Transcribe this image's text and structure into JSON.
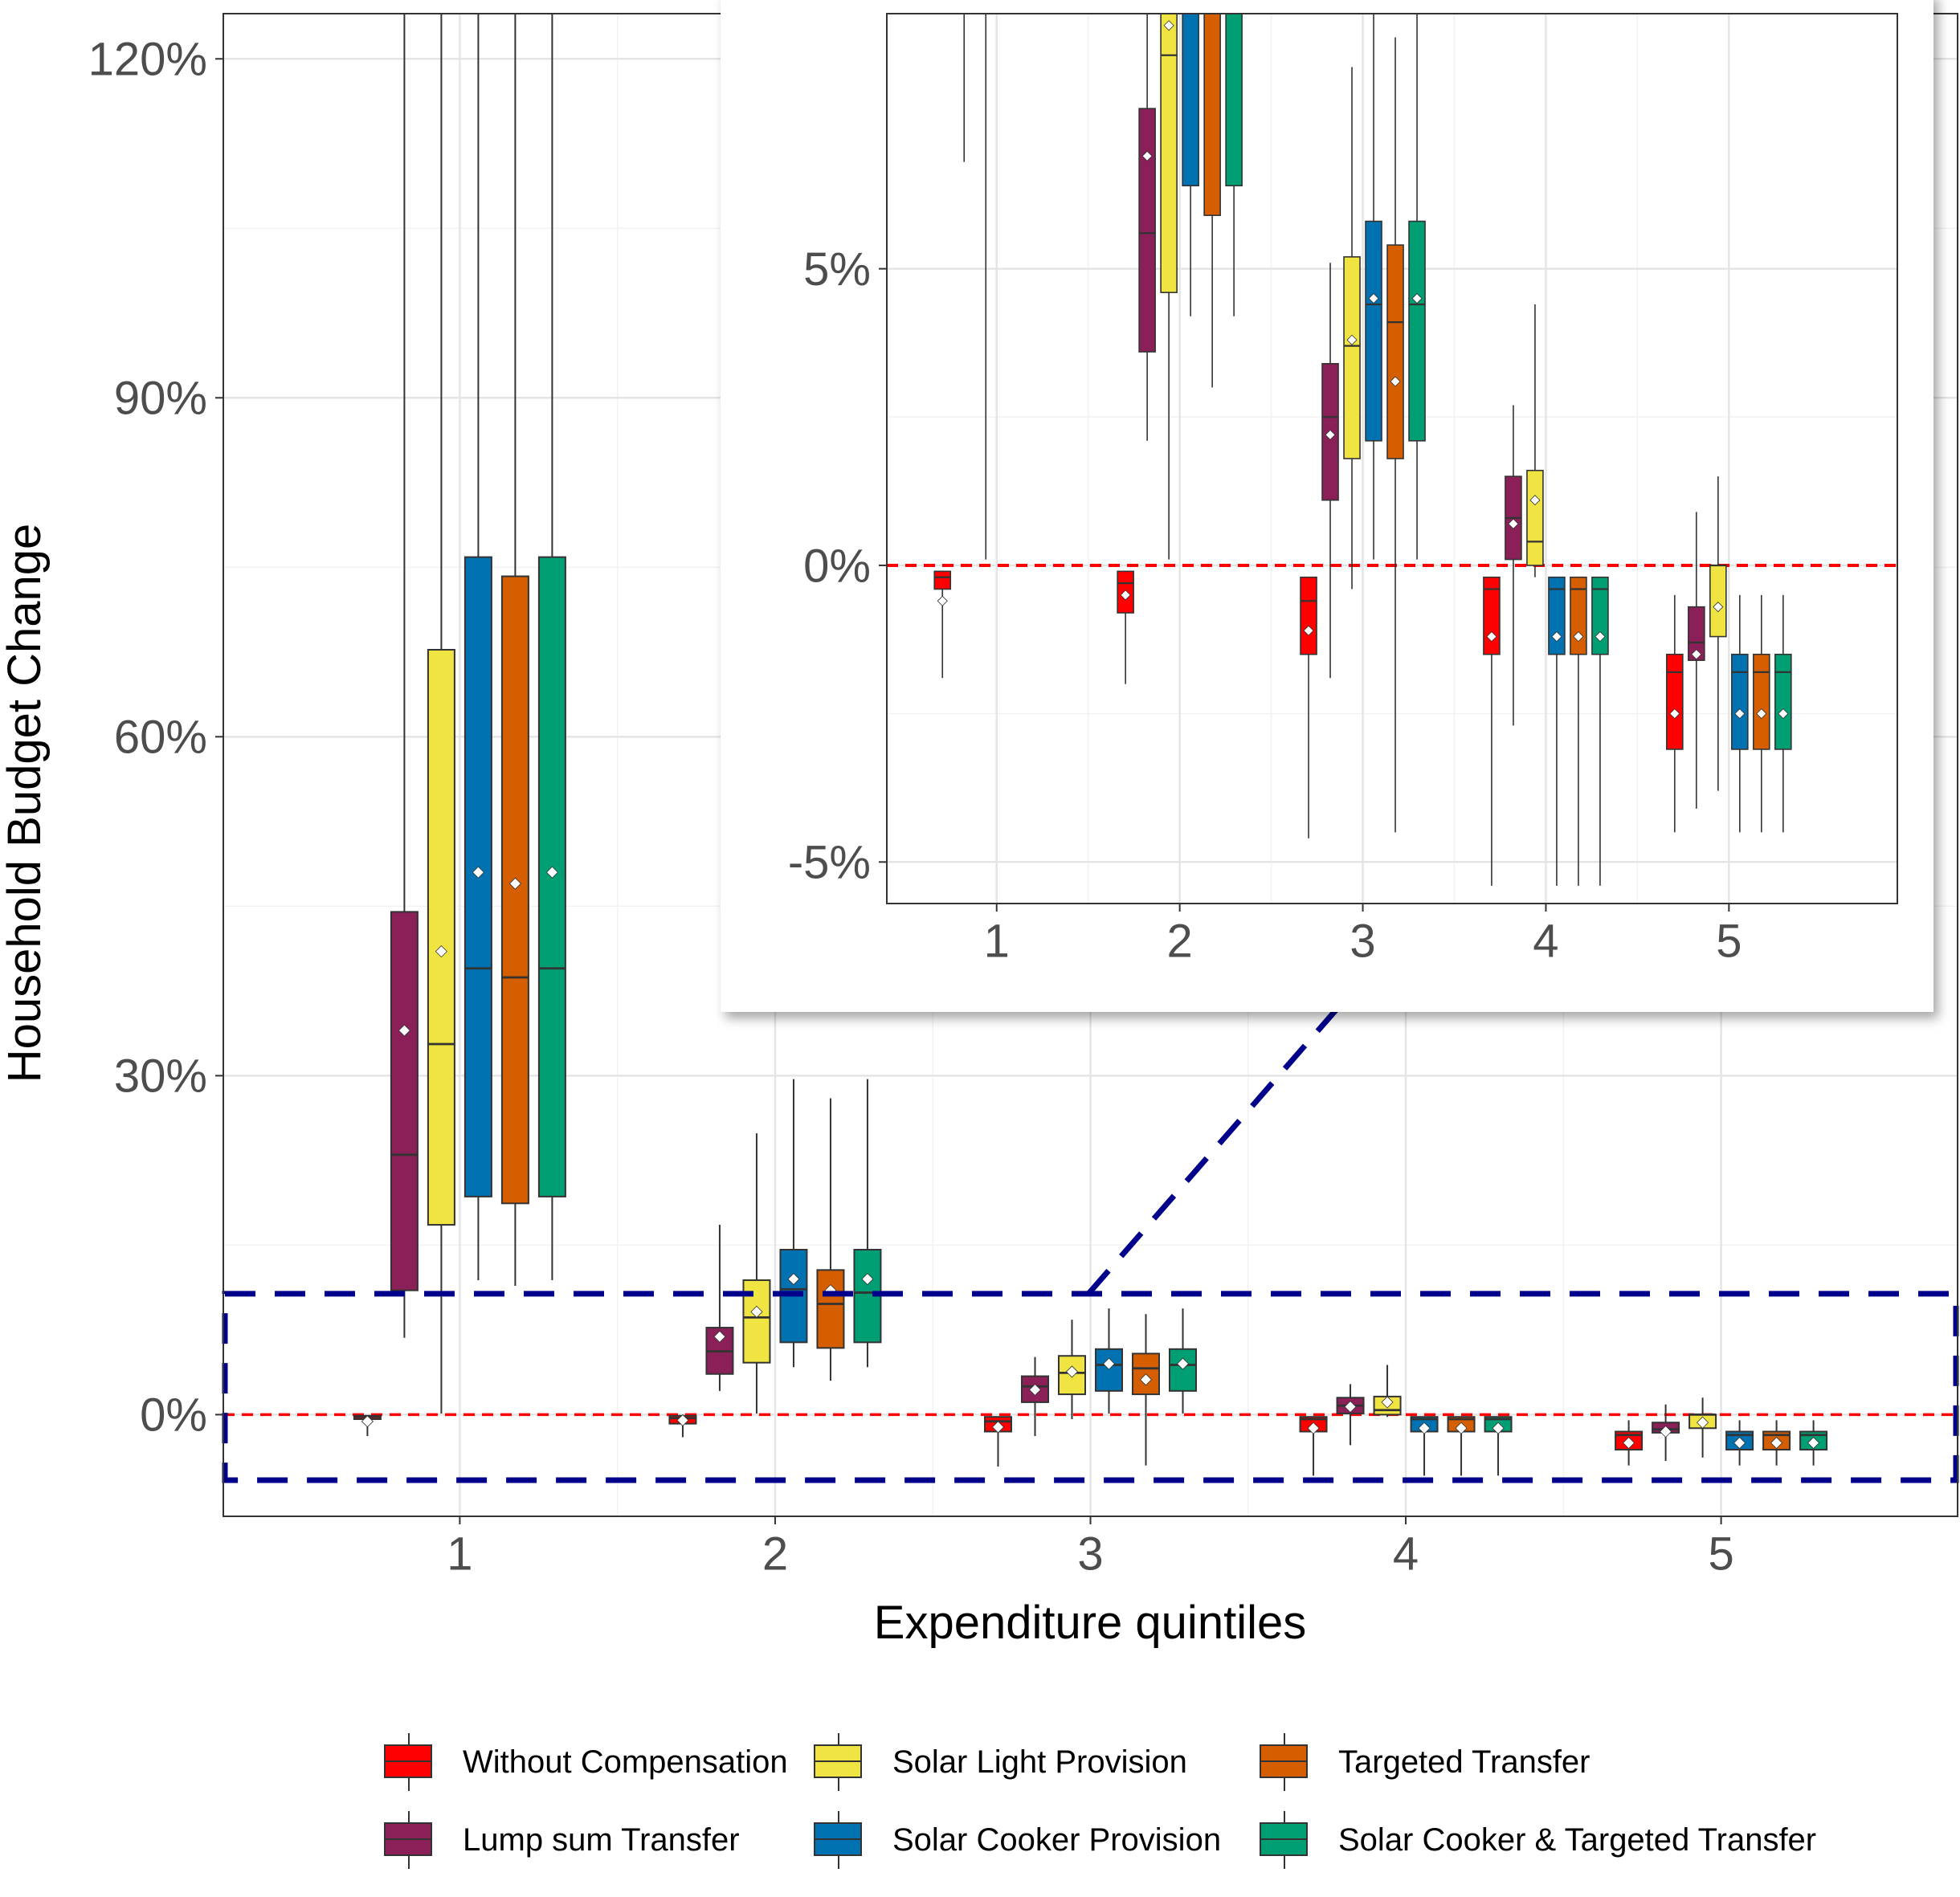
{
  "chart_data": [
    {
      "type": "boxplot",
      "xlabel": "Expenditure quintiles",
      "ylabel": "Household Budget Change",
      "categories": [
        "1",
        "2",
        "3",
        "4",
        "5"
      ],
      "y_tick_labels": [
        "0%",
        "30%",
        "60%",
        "90%",
        "120%"
      ],
      "y_ticks": [
        0,
        30,
        60,
        90,
        120
      ],
      "ylim": [
        -9,
        124
      ],
      "reference_line": 0,
      "highlight_box": {
        "y_range": [
          -5.8,
          10.7
        ]
      },
      "grid": true,
      "series": [
        {
          "name": "Without Compensation",
          "color": "#ff0000",
          "boxes": [
            {
              "min": -1.9,
              "q1": -0.4,
              "median": -0.2,
              "q3": -0.1,
              "max": -0.1,
              "mean": -0.6
            },
            {
              "min": -2.0,
              "q1": -0.8,
              "median": -0.3,
              "q3": -0.1,
              "max": -0.1,
              "mean": -0.5
            },
            {
              "min": -4.6,
              "q1": -1.5,
              "median": -0.6,
              "q3": -0.2,
              "max": -0.2,
              "mean": -1.1
            },
            {
              "min": -5.4,
              "q1": -1.5,
              "median": -0.4,
              "q3": -0.2,
              "max": -0.2,
              "mean": -1.2
            },
            {
              "min": -4.5,
              "q1": -3.1,
              "median": -1.8,
              "q3": -1.5,
              "max": -0.5,
              "mean": -2.5
            }
          ]
        },
        {
          "name": "Lump sum Transfer",
          "color": "#8b1f58",
          "boxes": [
            {
              "min": 6.8,
              "q1": 11.0,
              "median": 23.0,
              "q3": 44.5,
              "max": 124,
              "mean": 34.0
            },
            {
              "min": 2.1,
              "q1": 3.6,
              "median": 5.6,
              "q3": 7.7,
              "max": 16.8,
              "mean": 6.9
            },
            {
              "min": -1.9,
              "q1": 1.1,
              "median": 2.5,
              "q3": 3.4,
              "max": 5.1,
              "mean": 2.2
            },
            {
              "min": -2.7,
              "q1": 0.1,
              "median": 0.8,
              "q3": 1.5,
              "max": 2.7,
              "mean": 0.7
            },
            {
              "min": -4.1,
              "q1": -1.6,
              "median": -1.3,
              "q3": -0.7,
              "max": 0.9,
              "mean": -1.5
            }
          ]
        },
        {
          "name": "Solar Light Provision",
          "color": "#f0e442",
          "boxes": [
            {
              "min": 0.1,
              "q1": 16.8,
              "median": 32.8,
              "q3": 67.7,
              "max": 124,
              "mean": 41.0
            },
            {
              "min": 0.1,
              "q1": 4.6,
              "median": 8.6,
              "q3": 11.9,
              "max": 24.9,
              "mean": 9.1
            },
            {
              "min": -0.4,
              "q1": 1.8,
              "median": 3.7,
              "q3": 5.2,
              "max": 8.4,
              "mean": 3.8
            },
            {
              "min": -0.2,
              "q1": 0.0,
              "median": 0.4,
              "q3": 1.6,
              "max": 4.4,
              "mean": 1.1
            },
            {
              "min": -3.8,
              "q1": -1.2,
              "median": 0.0,
              "q3": 0.0,
              "max": 1.5,
              "mean": -0.7
            }
          ]
        },
        {
          "name": "Solar Cooker Provision",
          "color": "#0072b2",
          "boxes": [
            {
              "min": 11.9,
              "q1": 19.3,
              "median": 39.5,
              "q3": 75.9,
              "max": 124,
              "mean": 48.0
            },
            {
              "min": 4.2,
              "q1": 6.4,
              "median": 11.1,
              "q3": 14.6,
              "max": 29.7,
              "mean": 12.0
            },
            {
              "min": 0.1,
              "q1": 2.1,
              "median": 4.4,
              "q3": 5.8,
              "max": 9.4,
              "mean": 4.5
            },
            {
              "min": -5.4,
              "q1": -1.5,
              "median": -0.4,
              "q3": -0.2,
              "max": -0.2,
              "mean": -1.2
            },
            {
              "min": -4.5,
              "q1": -3.1,
              "median": -1.8,
              "q3": -1.5,
              "max": -0.5,
              "mean": -2.5
            }
          ]
        },
        {
          "name": "Targeted Transfer",
          "color": "#d55e00",
          "boxes": [
            {
              "min": 11.4,
              "q1": 18.7,
              "median": 38.7,
              "q3": 74.2,
              "max": 124,
              "mean": 47.0
            },
            {
              "min": 3.0,
              "q1": 5.9,
              "median": 9.8,
              "q3": 12.8,
              "max": 28.0,
              "mean": 11.0
            },
            {
              "min": -4.5,
              "q1": 1.8,
              "median": 4.1,
              "q3": 5.4,
              "max": 8.9,
              "mean": 3.1
            },
            {
              "min": -5.4,
              "q1": -1.5,
              "median": -0.4,
              "q3": -0.2,
              "max": -0.2,
              "mean": -1.2
            },
            {
              "min": -4.5,
              "q1": -3.1,
              "median": -1.8,
              "q3": -1.5,
              "max": -0.5,
              "mean": -2.5
            }
          ]
        },
        {
          "name": "Solar Cooker & Targeted Transfer",
          "color": "#009e73",
          "boxes": [
            {
              "min": 11.9,
              "q1": 19.3,
              "median": 39.5,
              "q3": 75.9,
              "max": 124,
              "mean": 48.0
            },
            {
              "min": 4.2,
              "q1": 6.4,
              "median": 10.8,
              "q3": 14.6,
              "max": 29.7,
              "mean": 12.0
            },
            {
              "min": 0.1,
              "q1": 2.1,
              "median": 4.4,
              "q3": 5.8,
              "max": 9.4,
              "mean": 4.5
            },
            {
              "min": -5.4,
              "q1": -1.5,
              "median": -0.4,
              "q3": -0.2,
              "max": -0.2,
              "mean": -1.2
            },
            {
              "min": -4.5,
              "q1": -3.1,
              "median": -1.8,
              "q3": -1.5,
              "max": -0.5,
              "mean": -2.5
            }
          ]
        }
      ],
      "legend_position": "bottom"
    },
    {
      "type": "boxplot",
      "inset": true,
      "categories": [
        "1",
        "2",
        "3",
        "4",
        "5"
      ],
      "y_tick_labels": [
        "-5%",
        "0%",
        "5%"
      ],
      "y_ticks": [
        -5,
        0,
        5
      ],
      "ylim": [
        -5.7,
        9.3
      ],
      "reference_line": 0,
      "grid": true
    }
  ],
  "legend": [
    {
      "label": "Without Compensation",
      "color": "#ff0000"
    },
    {
      "label": "Solar Light Provision",
      "color": "#f0e442"
    },
    {
      "label": "Targeted Transfer",
      "color": "#d55e00"
    },
    {
      "label": "Lump sum Transfer",
      "color": "#8b1f58"
    },
    {
      "label": "Solar Cooker Provision",
      "color": "#0072b2"
    },
    {
      "label": "Solar Cooker & Targeted Transfer",
      "color": "#009e73"
    }
  ]
}
